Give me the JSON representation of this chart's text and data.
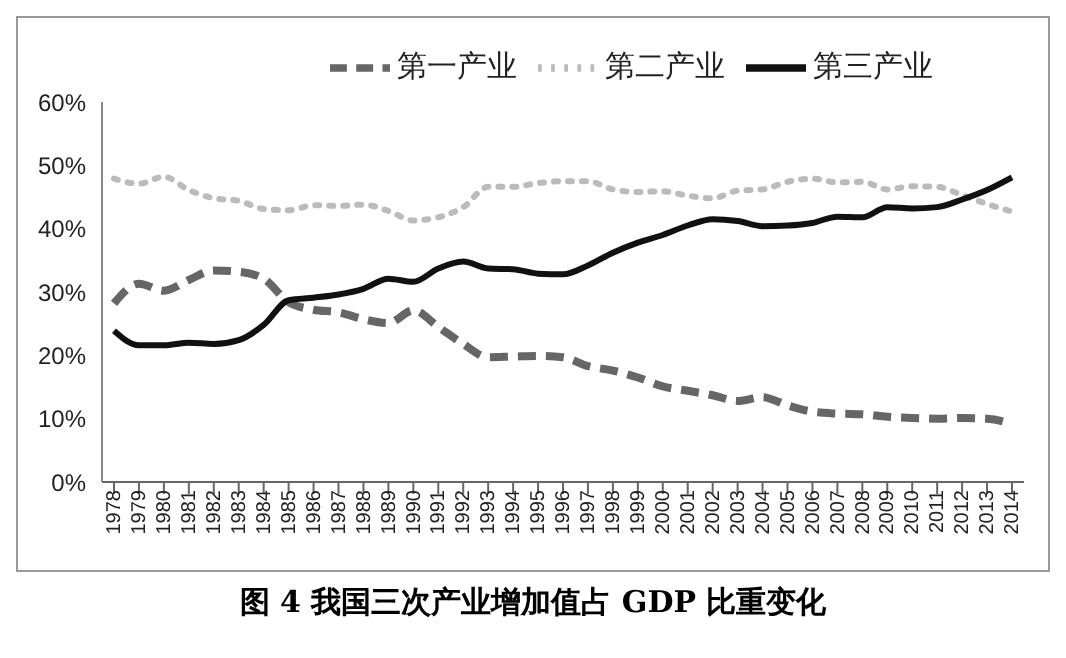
{
  "chart_data": {
    "type": "line",
    "title": "图 4 我国三次产业增加值占 GDP 比重变化",
    "categories": [
      "1978",
      "1979",
      "1980",
      "1981",
      "1982",
      "1983",
      "1984",
      "1985",
      "1986",
      "1987",
      "1988",
      "1989",
      "1990",
      "1991",
      "1992",
      "1993",
      "1994",
      "1995",
      "1996",
      "1997",
      "1998",
      "1999",
      "2000",
      "2001",
      "2002",
      "2003",
      "2004",
      "2005",
      "2006",
      "2007",
      "2008",
      "2009",
      "2010",
      "2011",
      "2012",
      "2013",
      "2014"
    ],
    "series": [
      {
        "name": "第一产业",
        "color": "#666666",
        "line_style": "dashed",
        "values": [
          28.2,
          31.3,
          30.2,
          31.9,
          33.4,
          33.2,
          32.1,
          28.4,
          27.2,
          26.8,
          25.7,
          25.1,
          27.1,
          24.5,
          21.8,
          19.7,
          19.8,
          19.9,
          19.7,
          18.3,
          17.6,
          16.5,
          15.1,
          14.4,
          13.7,
          12.8,
          13.4,
          12.1,
          11.1,
          10.8,
          10.7,
          10.3,
          10.1,
          10.0,
          10.1,
          10.0,
          9.2
        ]
      },
      {
        "name": "第二产业",
        "color": "#bbbbbb",
        "line_style": "dotted",
        "values": [
          47.9,
          47.1,
          48.2,
          46.1,
          44.8,
          44.4,
          43.1,
          42.9,
          43.7,
          43.6,
          43.8,
          42.8,
          41.3,
          41.8,
          43.4,
          46.6,
          46.6,
          47.2,
          47.5,
          47.5,
          46.2,
          45.8,
          45.9,
          45.2,
          44.8,
          46.0,
          46.2,
          47.4,
          47.9,
          47.3,
          47.4,
          46.2,
          46.7,
          46.6,
          45.3,
          43.9,
          42.7
        ]
      },
      {
        "name": "第三产业",
        "color": "#111111",
        "line_style": "solid",
        "values": [
          23.9,
          21.6,
          21.6,
          22.0,
          21.8,
          22.4,
          24.8,
          28.7,
          29.1,
          29.6,
          30.5,
          32.1,
          31.6,
          33.7,
          34.8,
          33.7,
          33.6,
          32.9,
          32.8,
          34.2,
          36.2,
          37.8,
          39.0,
          40.5,
          41.5,
          41.2,
          40.4,
          40.5,
          40.9,
          41.9,
          41.8,
          43.4,
          43.2,
          43.4,
          44.6,
          46.1,
          48.1
        ]
      }
    ],
    "ylim": [
      0,
      60
    ],
    "yticks": [
      {
        "value": 0,
        "label": "0%"
      },
      {
        "value": 10,
        "label": "10%"
      },
      {
        "value": 20,
        "label": "20%"
      },
      {
        "value": 30,
        "label": "30%"
      },
      {
        "value": 40,
        "label": "40%"
      },
      {
        "value": 50,
        "label": "50%"
      },
      {
        "value": 60,
        "label": "60%"
      }
    ],
    "legend": "top",
    "grid": false,
    "marker": "none"
  }
}
